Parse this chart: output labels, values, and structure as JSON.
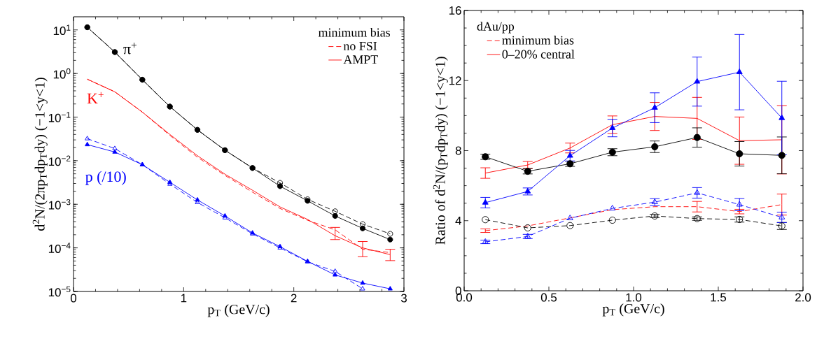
{
  "chart_data": [
    {
      "type": "line",
      "log": true,
      "x": [
        0.125,
        0.375,
        0.625,
        0.875,
        1.125,
        1.375,
        1.625,
        1.875,
        2.125,
        2.375,
        2.625,
        2.875
      ],
      "xlim": [
        0,
        3
      ],
      "ylim": [
        1e-05,
        20
      ],
      "xticks": [
        0,
        1,
        2,
        3
      ],
      "yticks": [
        {
          "value": 1e-05,
          "label": "10$^{−5}$"
        },
        {
          "value": 0.0001,
          "label": "10$^{−4}$"
        },
        {
          "value": 0.001,
          "label": "10$^{−3}$"
        },
        {
          "value": 0.01,
          "label": "10$^{−2}$"
        },
        {
          "value": 0.1,
          "label": "10$^{−1}$"
        },
        {
          "value": 1,
          "label": "10$^{0}$"
        },
        {
          "value": 10,
          "label": "10$^{1}$"
        }
      ],
      "xlabel": "p$_{T}$ (GeV/c)",
      "ylabel": "d$^{2}$N/(2πp$_{T}$dp$_{T}$dy) (−1<y<1)",
      "legend": "top right",
      "legend_title": "minimum bias",
      "annotations": [
        "π$^{+}$",
        "K$^{+}$",
        "p (/10)"
      ],
      "series": [
        {
          "color": "#000000",
          "marker": "circle",
          "line_style": "solid",
          "values": [
            11.5,
            3.1,
            0.72,
            0.174,
            0.051,
            0.0174,
            0.0068,
            0.0026,
            0.0012,
            0.00054,
            0.00028,
            0.000155
          ]
        },
        {
          "color": "#000000",
          "marker": "circle",
          "line_style": "dashed",
          "values": [
            11.5,
            3.1,
            0.72,
            0.174,
            0.051,
            0.0174,
            0.0068,
            0.0031,
            0.0013,
            0.00069,
            0.00035,
            0.00021
          ]
        },
        {
          "name": "no FSI",
          "color": "#ff0000",
          "marker": "none",
          "line_style": "dashed",
          "values": [
            0.74,
            0.38,
            0.13,
            0.038,
            0.012,
            0.0046,
            0.0019,
            0.0008,
            0.00043,
            0.00026,
            9.3e-05,
            7.8e-05
          ]
        },
        {
          "name": "AMPT",
          "color": "#ff0000",
          "marker": "none",
          "line_style": "solid",
          "values": [
            0.74,
            0.38,
            0.13,
            0.04,
            0.013,
            0.0049,
            0.0021,
            0.00087,
            0.00045,
            0.00019,
            0.0001,
            7e-05
          ],
          "errors": [
            null,
            null,
            null,
            null,
            null,
            null,
            null,
            null,
            null,
            [
              0.000155,
              0.000295
            ],
            [
              6.3e-05,
              0.00014
            ],
            [
              5.1e-05,
              9.3e-05
            ]
          ]
        },
        {
          "color": "#0000ff",
          "marker": "triangle",
          "line_style": "dashed",
          "values": [
            0.032,
            0.019,
            0.0081,
            0.0029,
            0.0011,
            0.00049,
            0.00021,
            0.0001,
            4.8e-05,
            2.9e-05,
            1.15e-05,
            null
          ]
        },
        {
          "color": "#0000ff",
          "marker": "triangle",
          "line_style": "solid",
          "values": [
            0.0234,
            0.0158,
            0.0081,
            0.0032,
            0.00126,
            0.00054,
            0.00022,
            0.000107,
            4.9e-05,
            2.4e-05,
            1.56e-05,
            1.15e-05
          ]
        }
      ]
    },
    {
      "type": "line",
      "x": [
        0.125,
        0.375,
        0.625,
        0.875,
        1.125,
        1.375,
        1.625,
        1.875
      ],
      "xlim": [
        0,
        2
      ],
      "ylim": [
        0,
        16
      ],
      "xticks": [
        {
          "value": 0,
          "label": "0.0"
        },
        {
          "value": 0.5,
          "label": "0.5"
        },
        {
          "value": 1,
          "label": "1.0"
        },
        {
          "value": 1.5,
          "label": "1.5"
        },
        {
          "value": 2,
          "label": "2.0"
        }
      ],
      "yticks": [
        0,
        4,
        8,
        12,
        16
      ],
      "xlabel": "p$_{T}$ (GeV/c)",
      "ylabel": "Ratio of d$^{2}$N/(p$_{T}$dp$_{T}$dy) (−1<y<1)",
      "legend": "top left",
      "legend_title": "dAu/pp",
      "series": [
        {
          "name": "minimum bias",
          "color": "#ff0000",
          "marker": "none",
          "line_style": "dashed",
          "values": [
            3.43,
            3.7,
            4.16,
            4.63,
            4.8,
            4.8,
            4.52,
            4.92
          ],
          "errors": [
            0.1,
            null,
            null,
            null,
            null,
            0.3,
            0.13,
            0.6
          ]
        },
        {
          "name": "0–20% central",
          "color": "#ff0000",
          "marker": "none",
          "line_style": "solid",
          "values": [
            6.72,
            7.18,
            8.15,
            9.48,
            9.95,
            9.84,
            8.57,
            8.62
          ],
          "errors": [
            0.3,
            0.2,
            0.28,
            0.5,
            0.8,
            1.2,
            1.35,
            1.95
          ]
        },
        {
          "color": "#000000",
          "marker": "circle",
          "line_style": "solid",
          "values": [
            7.65,
            6.82,
            7.25,
            7.91,
            8.22,
            8.75,
            7.82,
            7.73
          ],
          "errors": [
            0.15,
            0.15,
            0.15,
            0.2,
            0.33,
            0.55,
            0.7,
            1.05
          ]
        },
        {
          "color": "#000000",
          "marker": "circle",
          "line_style": "dashed",
          "values": [
            4.06,
            3.59,
            3.72,
            4.03,
            4.27,
            4.12,
            4.07,
            3.7
          ],
          "errors": [
            null,
            null,
            null,
            null,
            0.1,
            0.1,
            0.15,
            0.2
          ]
        },
        {
          "color": "#0000ff",
          "marker": "triangle",
          "line_style": "solid",
          "values": [
            5.03,
            5.67,
            7.71,
            9.29,
            10.45,
            11.94,
            12.48,
            9.86
          ],
          "errors": [
            0.3,
            0.2,
            0.3,
            0.5,
            0.85,
            1.4,
            2.15,
            2.1
          ]
        },
        {
          "color": "#0000ff",
          "marker": "triangle",
          "line_style": "dashed",
          "values": [
            2.79,
            3.1,
            4.14,
            4.7,
            5.06,
            5.59,
            4.92,
            4.19
          ],
          "errors": [
            0.1,
            0.12,
            null,
            null,
            0.2,
            0.3,
            0.35,
            0.3
          ]
        }
      ]
    }
  ]
}
